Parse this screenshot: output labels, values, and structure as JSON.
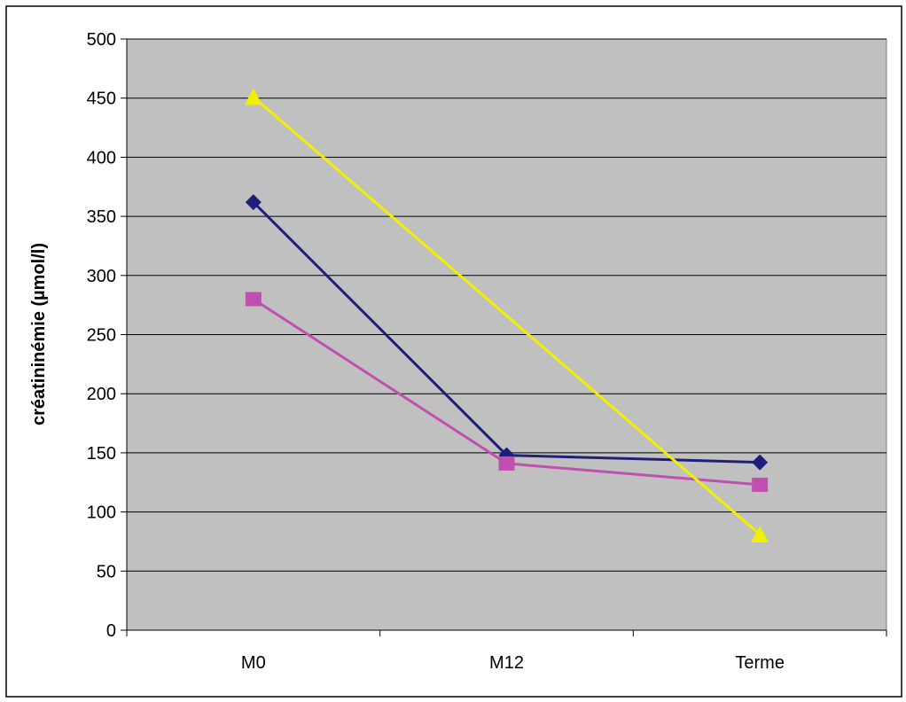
{
  "chart_data": {
    "type": "line",
    "title": "",
    "xlabel": "",
    "ylabel": "créatininémie (µmol/l)",
    "categories": [
      "M0",
      "M12",
      "Terme"
    ],
    "ylim": [
      0,
      500
    ],
    "yticks": [
      0,
      50,
      100,
      150,
      200,
      250,
      300,
      350,
      400,
      450,
      500
    ],
    "grid": true,
    "legend": "none",
    "plot_background": "#c0c0c0",
    "series": [
      {
        "values": [
          362,
          148,
          142
        ],
        "color": "#1f1f7a",
        "marker": "diamond"
      },
      {
        "values": [
          280,
          141,
          123
        ],
        "color": "#c050b0",
        "marker": "square"
      },
      {
        "values": [
          451,
          null,
          81
        ],
        "color": "#f0f000",
        "marker": "triangle"
      }
    ]
  }
}
